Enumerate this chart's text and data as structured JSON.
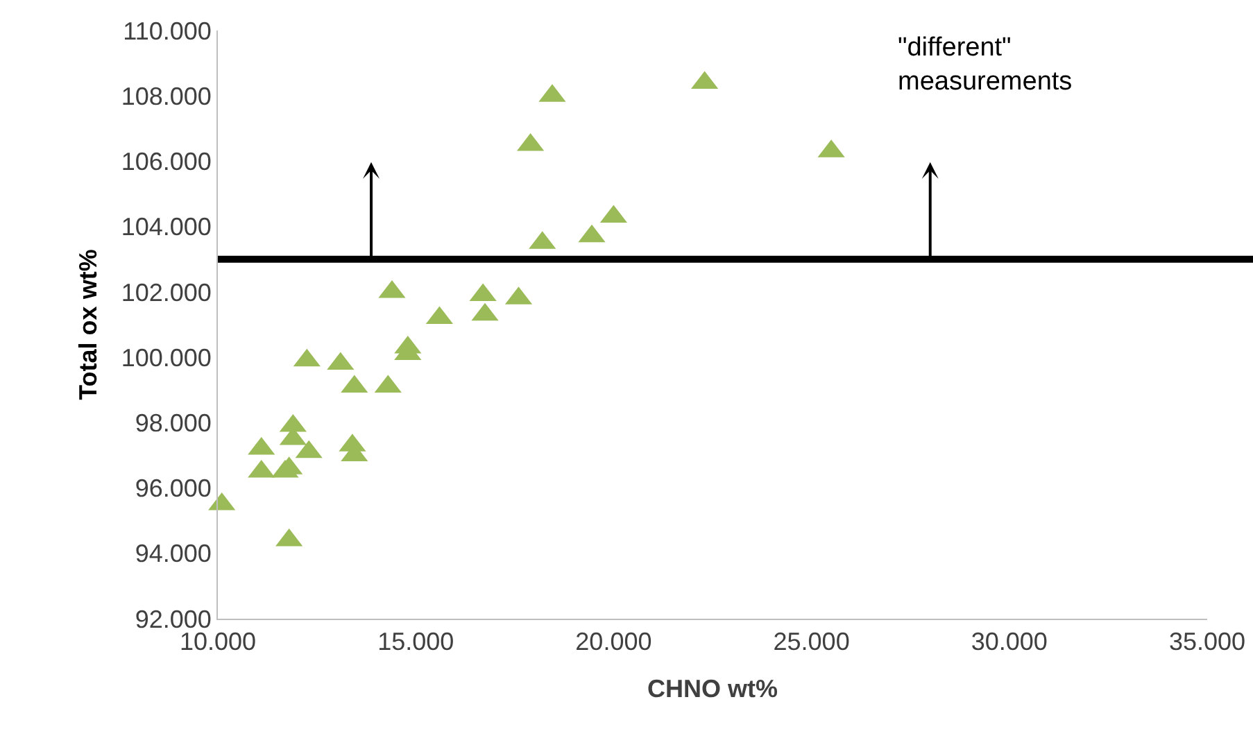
{
  "chart_data": {
    "type": "scatter",
    "xlabel": "CHNO wt%",
    "ylabel": "Total ox wt%",
    "x": [
      10.1,
      11.1,
      11.1,
      11.7,
      11.8,
      11.9,
      11.9,
      12.3,
      11.8,
      12.25,
      13.1,
      13.45,
      13.4,
      13.45,
      14.3,
      14.4,
      14.8,
      14.8,
      15.6,
      16.7,
      16.75,
      17.6,
      18.45,
      17.9,
      18.2,
      19.45,
      20.0,
      22.3,
      25.5
    ],
    "series": [
      {
        "color": "#9bbb59",
        "values": [
          95.5,
          97.2,
          96.5,
          96.5,
          96.6,
          97.9,
          97.5,
          97.1,
          94.4,
          99.9,
          99.8,
          99.1,
          97.3,
          97.0,
          99.1,
          102.0,
          100.3,
          100.1,
          101.2,
          101.9,
          101.3,
          101.8,
          108.0,
          106.5,
          103.5,
          103.7,
          104.3,
          108.4,
          106.3
        ]
      }
    ],
    "xlim": [
      10,
      35
    ],
    "xticks": [
      {
        "value": 10,
        "label": "10.000"
      },
      {
        "value": 15,
        "label": "15.000"
      },
      {
        "value": 20,
        "label": "20.000"
      },
      {
        "value": 25,
        "label": "25.000"
      },
      {
        "value": 30,
        "label": "30.000"
      },
      {
        "value": 35,
        "label": "35.000"
      }
    ],
    "ylim": [
      92,
      110
    ],
    "yticks": [
      {
        "value": 92,
        "label": "92.000"
      },
      {
        "value": 94,
        "label": "94.000"
      },
      {
        "value": 96,
        "label": "96.000"
      },
      {
        "value": 98,
        "label": "98.000"
      },
      {
        "value": 100,
        "label": "100.000"
      },
      {
        "value": 102,
        "label": "102.000"
      },
      {
        "value": 104,
        "label": "104.000"
      },
      {
        "value": 106,
        "label": "106.000"
      },
      {
        "value": 108,
        "label": "108.000"
      },
      {
        "value": 110,
        "label": "110.000"
      }
    ],
    "ref_lines": [
      {
        "axis": "y",
        "value": 103,
        "color": "#000000",
        "line_style": "solid"
      }
    ],
    "annotations": [
      "\"different\"\nmeasurements"
    ],
    "grid": false,
    "marker": "triangle"
  }
}
